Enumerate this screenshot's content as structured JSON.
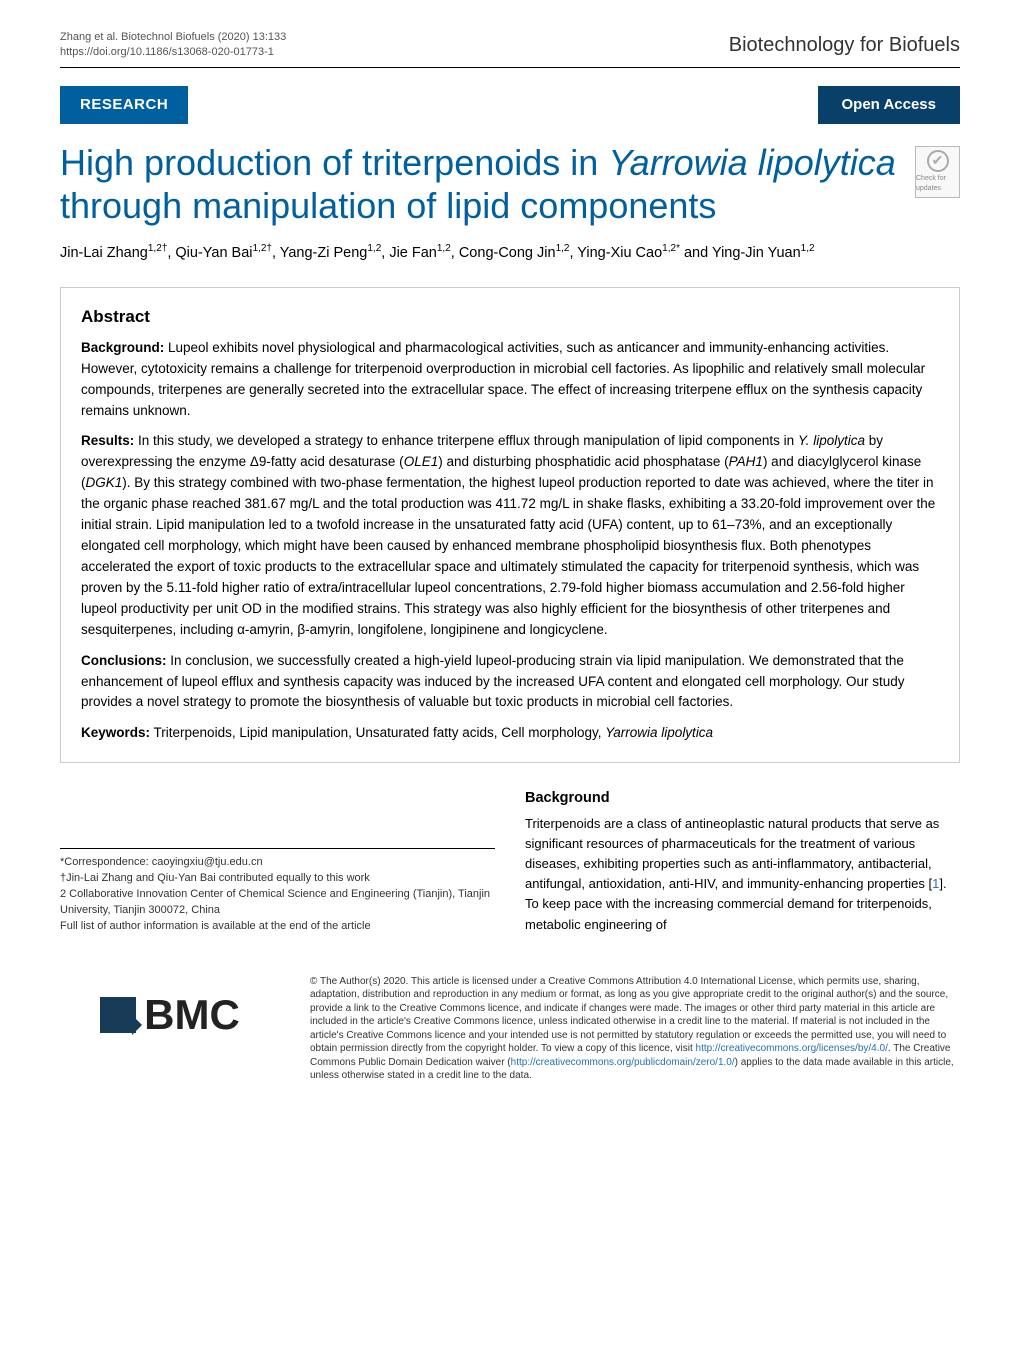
{
  "header": {
    "citation_line1": "Zhang et al. Biotechnol Biofuels    (2020) 13:133",
    "citation_line2": "https://doi.org/10.1186/s13068-020-01773-1",
    "journal": "Biotechnology for Biofuels"
  },
  "badges": {
    "research": "RESEARCH",
    "open_access": "Open Access",
    "check_updates": "Check for updates"
  },
  "title_parts": {
    "pre": "High production of triterpenoids in ",
    "ital1": "Yarrowia lipolytica",
    "post": " through manipulation of lipid components"
  },
  "authors_html": "Jin-Lai Zhang<sup>1,2†</sup>, Qiu-Yan Bai<sup>1,2†</sup>, Yang-Zi Peng<sup>1,2</sup>, Jie Fan<sup>1,2</sup>, Cong-Cong Jin<sup>1,2</sup>, Ying-Xiu Cao<sup>1,2*</sup> and Ying-Jin Yuan<sup>1,2</sup>",
  "abstract": {
    "heading": "Abstract",
    "background_label": "Background:",
    "background": " Lupeol exhibits novel physiological and pharmacological activities, such as anticancer and immunity-enhancing activities. However, cytotoxicity remains a challenge for triterpenoid overproduction in microbial cell factories. As lipophilic and relatively small molecular compounds, triterpenes are generally secreted into the extracellular space. The effect of increasing triterpene efflux on the synthesis capacity remains unknown.",
    "results_label": "Results:",
    "results": " In this study, we developed a strategy to enhance triterpene efflux through manipulation of lipid components in Y. lipolytica by overexpressing the enzyme Δ9-fatty acid desaturase (OLE1) and disturbing phosphatidic acid phosphatase (PAH1) and diacylglycerol kinase (DGK1). By this strategy combined with two-phase fermentation, the highest lupeol production reported to date was achieved, where the titer in the organic phase reached 381.67 mg/L and the total production was 411.72 mg/L in shake flasks, exhibiting a 33.20-fold improvement over the initial strain. Lipid manipulation led to a twofold increase in the unsaturated fatty acid (UFA) content, up to 61–73%, and an exceptionally elongated cell morphology, which might have been caused by enhanced membrane phospholipid biosynthesis flux. Both phenotypes accelerated the export of toxic products to the extracellular space and ultimately stimulated the capacity for triterpenoid synthesis, which was proven by the 5.11-fold higher ratio of extra/intracellular lupeol concentrations, 2.79-fold higher biomass accumulation and 2.56-fold higher lupeol productivity per unit OD in the modified strains. This strategy was also highly efficient for the biosynthesis of other triterpenes and sesquiterpenes, including α-amyrin, β-amyrin, longifolene, longipinene and longicyclene.",
    "conclusions_label": "Conclusions:",
    "conclusions": " In conclusion, we successfully created a high-yield lupeol-producing strain via lipid manipulation. We demonstrated that the enhancement of lupeol efflux and synthesis capacity was induced by the increased UFA content and elongated cell morphology. Our study provides a novel strategy to promote the biosynthesis of valuable but toxic products in microbial cell factories.",
    "keywords_label": "Keywords:",
    "keywords": " Triterpenoids, Lipid manipulation, Unsaturated fatty acids, Cell morphology, Yarrowia lipolytica"
  },
  "body": {
    "background_heading": "Background",
    "background_text_pre": "Triterpenoids are a class of antineoplastic natural products that serve as significant resources of pharmaceuticals for the treatment of various diseases, exhibiting properties such as anti-inflammatory, antibacterial, antifungal, antioxidation, anti-HIV, and immunity-enhancing properties [",
    "ref1": "1",
    "background_text_post": "]. To keep pace with the increasing commercial demand for triterpenoids, metabolic engineering of"
  },
  "affiliations": {
    "correspondence": "*Correspondence: caoyingxiu@tju.edu.cn",
    "equal": "†Jin-Lai Zhang and Qiu-Yan Bai contributed equally to this work",
    "aff2": "2 Collaborative Innovation Center of Chemical Science and Engineering (Tianjin), Tianjin University, Tianjin 300072, China",
    "full_list": "Full list of author information is available at the end of the article"
  },
  "footer": {
    "bmc": "BMC",
    "license_pre": "© The Author(s) 2020. This article is licensed under a Creative Commons Attribution 4.0 International License, which permits use, sharing, adaptation, distribution and reproduction in any medium or format, as long as you give appropriate credit to the original author(s) and the source, provide a link to the Creative Commons licence, and indicate if changes were made. The images or other third party material in this article are included in the article's Creative Commons licence, unless indicated otherwise in a credit line to the material. If material is not included in the article's Creative Commons licence and your intended use is not permitted by statutory regulation or exceeds the permitted use, you will need to obtain permission directly from the copyright holder. To view a copy of this licence, visit ",
    "license_link1": "http://creativecommons.org/licenses/by/4.0/",
    "license_mid": ". The Creative Commons Public Domain Dedication waiver (",
    "license_link2": "http://creativecommons.org/publicdomain/zero/1.0/",
    "license_post": ") applies to the data made available in this article, unless otherwise stated in a credit line to the data."
  },
  "colors": {
    "brand_blue": "#005f9e",
    "dark_blue": "#094069",
    "link_blue": "#2a6fb0",
    "text": "#000000",
    "border_gray": "#cccccc"
  }
}
